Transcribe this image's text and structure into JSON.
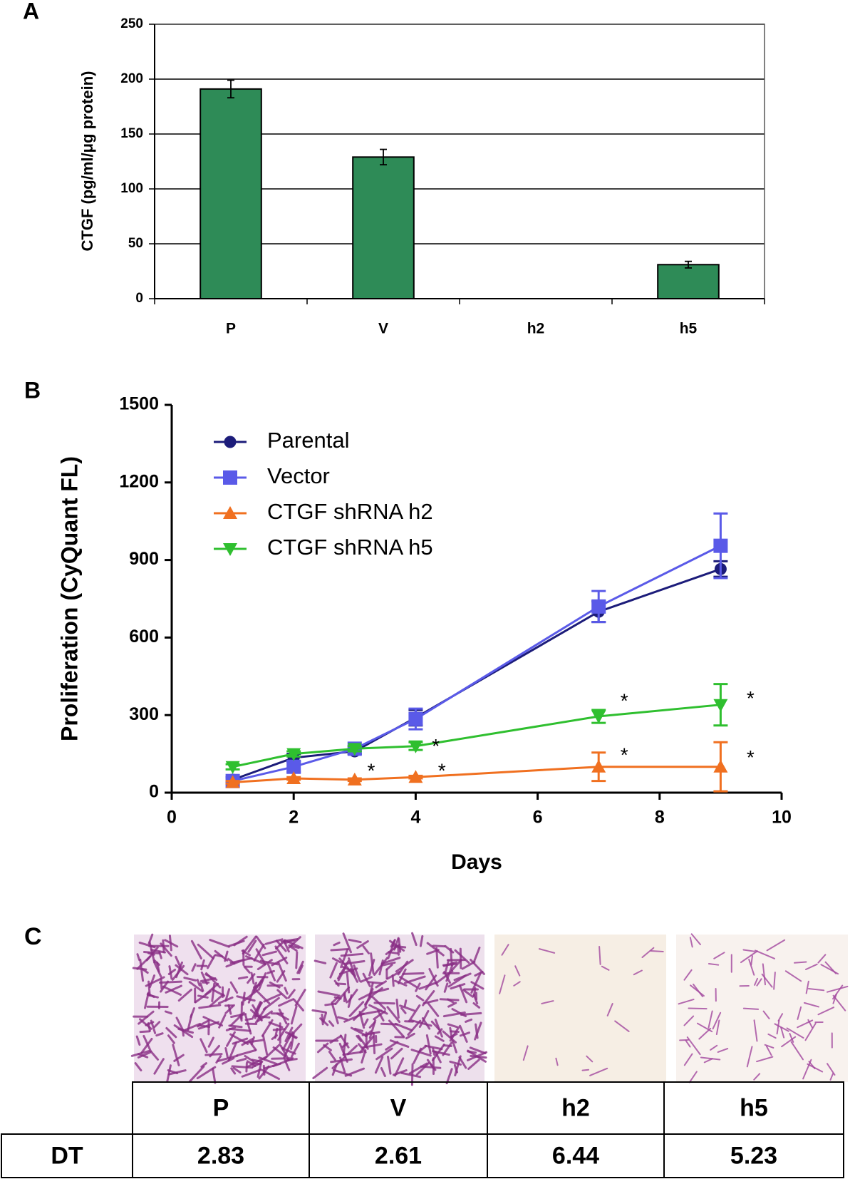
{
  "chart_data": [
    {
      "type": "bar",
      "label": "A",
      "y_label": "CTGF (pg/ml/μg protein)",
      "categories": [
        "P",
        "V",
        "h2",
        "h5"
      ],
      "values": [
        191,
        129,
        0,
        31
      ],
      "errors": [
        8,
        7,
        null,
        3
      ],
      "color": "#2e8b57",
      "ylim": [
        0,
        250
      ],
      "yticks": [
        0,
        50,
        100,
        150,
        200,
        250
      ],
      "grid": true
    },
    {
      "type": "line",
      "label": "B",
      "x_label": "Days",
      "y_label": "Proliferation (CyQuant FL)",
      "x": [
        1,
        2,
        3,
        4,
        7,
        9
      ],
      "series": [
        {
          "name": "Parental",
          "color": "#1c1c7a",
          "marker": "circle",
          "values": [
            50,
            135,
            160,
            290,
            700,
            865
          ],
          "errors": [
            10,
            15,
            10,
            30,
            40,
            30
          ]
        },
        {
          "name": "Vector",
          "color": "#5a5ae8",
          "marker": "square",
          "values": [
            45,
            100,
            170,
            285,
            720,
            955
          ],
          "errors": [
            10,
            20,
            10,
            40,
            60,
            125
          ]
        },
        {
          "name": "CTGF shRNA h2",
          "color": "#f07020",
          "marker": "triangle-up",
          "values": [
            40,
            55,
            50,
            60,
            100,
            100
          ],
          "errors": [
            5,
            5,
            5,
            5,
            55,
            95
          ]
        },
        {
          "name": "CTGF shRNA h5",
          "color": "#2fbf2f",
          "marker": "triangle-down",
          "values": [
            100,
            150,
            170,
            180,
            295,
            340
          ],
          "errors": [
            10,
            10,
            10,
            15,
            25,
            80
          ]
        }
      ],
      "annotations": [
        {
          "text": "*",
          "x": 3.27,
          "y": 80
        },
        {
          "text": "*",
          "x": 4.43,
          "y": 80
        },
        {
          "text": "*",
          "x": 7.42,
          "y": 140
        },
        {
          "text": "*",
          "x": 9.49,
          "y": 130
        },
        {
          "text": "*",
          "x": 4.33,
          "y": 175
        },
        {
          "text": "*",
          "x": 7.42,
          "y": 350
        },
        {
          "text": "*",
          "x": 9.49,
          "y": 360
        }
      ],
      "xlim": [
        0,
        10
      ],
      "xticks": [
        0,
        2,
        4,
        6,
        8,
        10
      ],
      "ylim": [
        0,
        1500
      ],
      "yticks": [
        0,
        300,
        600,
        900,
        1200,
        1500
      ],
      "legend": "top-left"
    }
  ],
  "panel_c": {
    "label": "C",
    "table": {
      "header": [
        "P",
        "V",
        "h2",
        "h5"
      ],
      "rows": [
        [
          "DT",
          "2.83",
          "2.61",
          "6.44",
          "5.23"
        ]
      ]
    }
  }
}
